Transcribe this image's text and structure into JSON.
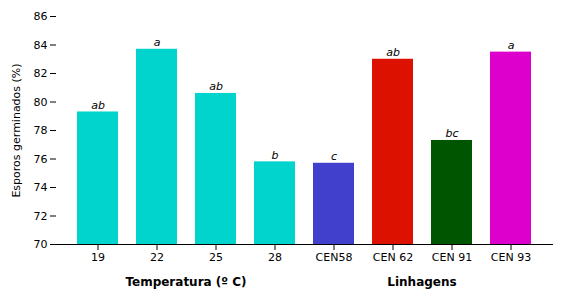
{
  "chart_data": {
    "type": "bar",
    "categories": [
      "19",
      "22",
      "25",
      "28",
      "CEN58",
      "CEN 62",
      "CEN 91",
      "CEN 93"
    ],
    "values": [
      79.3,
      83.7,
      80.6,
      75.8,
      75.7,
      83.0,
      77.3,
      83.5
    ],
    "colors": [
      "#00D4CC",
      "#00D4CC",
      "#00D4CC",
      "#00D4CC",
      "#4040CC",
      "#DD1100",
      "#005500",
      "#DD00CC"
    ],
    "annotations": [
      "ab",
      "a",
      "ab",
      "b",
      "c",
      "ab",
      "bc",
      "a"
    ],
    "groups": [
      {
        "name": "Temperatura (º C)",
        "categories": [
          "19",
          "22",
          "25",
          "28"
        ]
      },
      {
        "name": "Linhagens",
        "categories": [
          "CEN58",
          "CEN 62",
          "CEN 91",
          "CEN 93"
        ]
      }
    ],
    "ylabel": "Esporos germinados (%)",
    "ylim": [
      70,
      86
    ],
    "yticks": [
      70,
      72,
      74,
      76,
      78,
      80,
      82,
      84,
      86
    ],
    "grid": false
  }
}
